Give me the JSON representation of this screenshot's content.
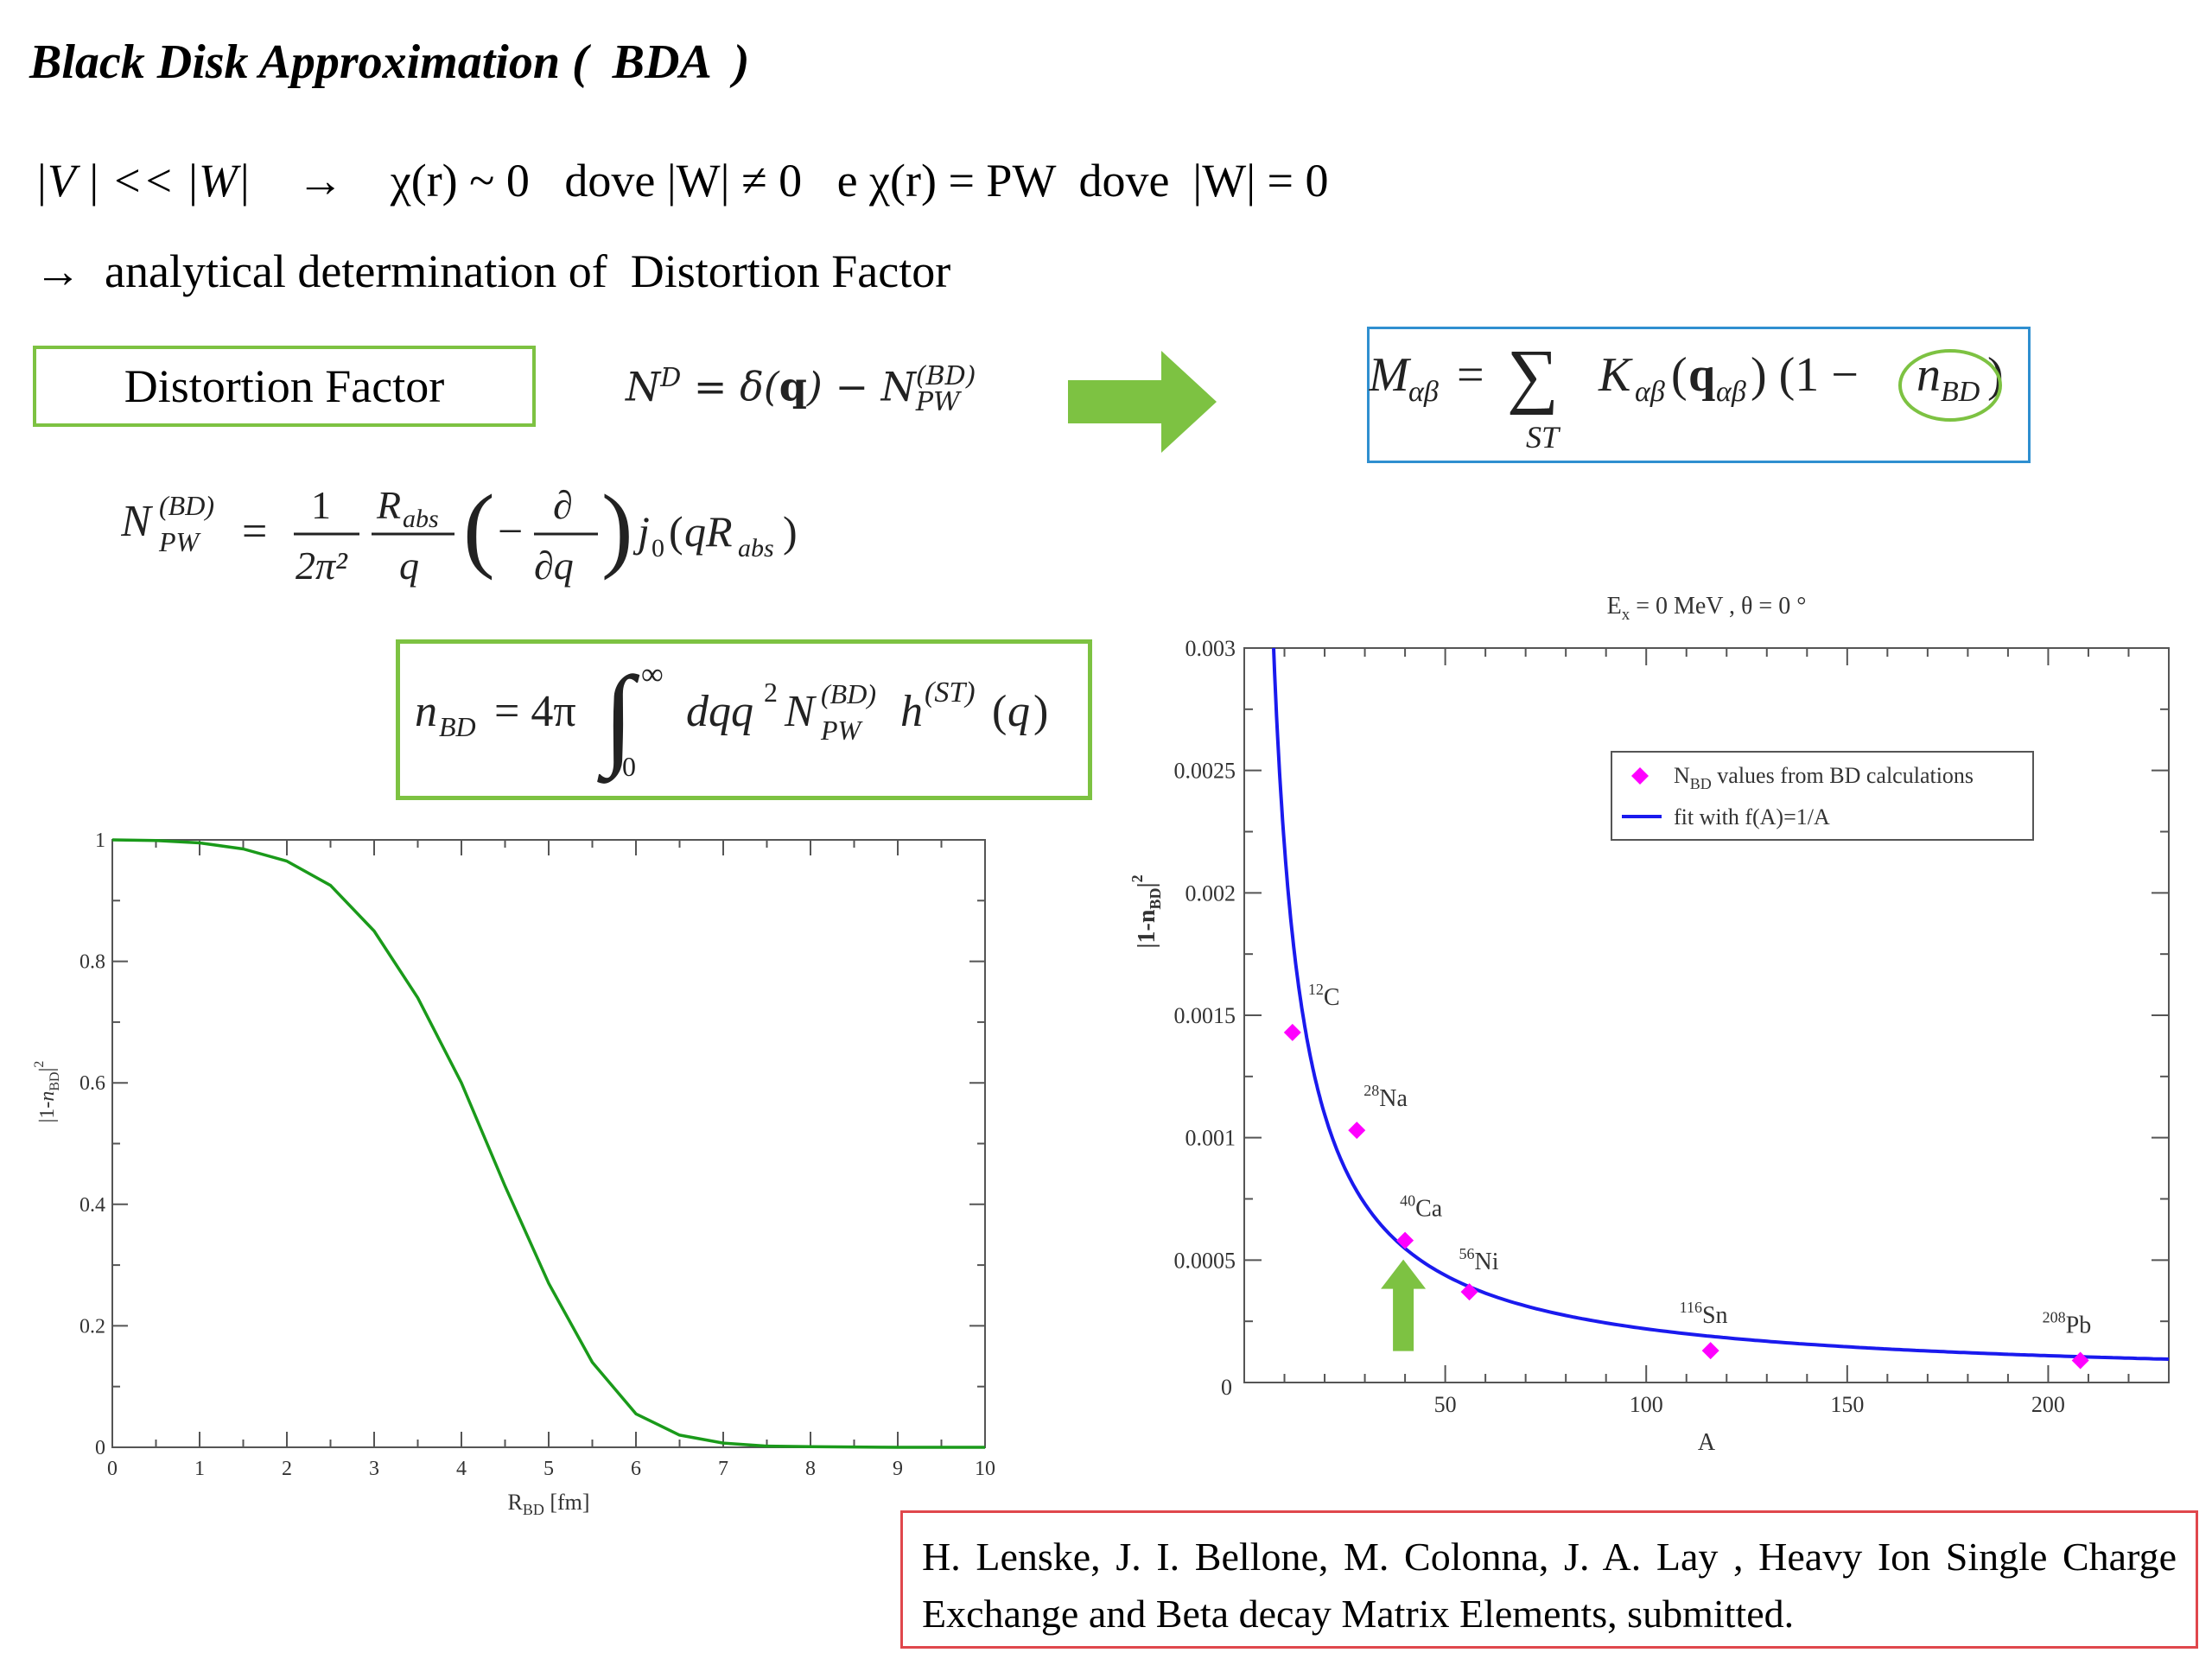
{
  "slide": {
    "title": "Black Disk Approximation (  BDA  )",
    "line1": {
      "v": "|V | << |W|",
      "arrow": "→",
      "chi_zero": "χ(r) ~ 0",
      "dove1": "dove |W| ≠ 0",
      "e_chi_pw": "e χ(r) = PW",
      "dove2": "dove  |W| = 0"
    },
    "line2": {
      "arrow": "→",
      "text": "analytical determination of  Distortion Factor"
    },
    "distortion_box_label": "Distortion Factor",
    "equations": {
      "nd": "N^D = δ(q) − N_PW^(BD)",
      "m": "M_αβ = Σ_ST K_αβ(q_αβ) (1 − n_BD)",
      "npw": "N_PW^(BD) = (1/2π²)(R_abs/q)(−∂/∂q) j₀(qR_abs)",
      "nbd": "n_BD = 4π ∫₀^∞ dq q² N_PW^(BD) h^(ST)(q)"
    },
    "arrow_color": "#7dc242",
    "reference": "H. Lenske, J. I. Bellone, M. Colonna, J. A. Lay ,  Heavy Ion Single Charge Exchange and Beta decay Matrix Elements, submitted."
  },
  "chart_data": [
    {
      "type": "line",
      "title": "",
      "xlabel": "R_BD [fm]",
      "ylabel": "|1-n_BD|^2",
      "xlim": [
        0,
        10
      ],
      "ylim": [
        0,
        1
      ],
      "x_ticks": [
        0,
        1,
        2,
        3,
        4,
        5,
        6,
        7,
        8,
        9,
        10
      ],
      "y_ticks": [
        0,
        0.2,
        0.4,
        0.6,
        0.8,
        1
      ],
      "series": [
        {
          "color": "#1a9a1a",
          "x": [
            0,
            0.5,
            1,
            1.5,
            2,
            2.5,
            3,
            3.5,
            4,
            4.5,
            5,
            5.5,
            6,
            6.5,
            7,
            7.5,
            8,
            9,
            10
          ],
          "y": [
            1,
            0.999,
            0.995,
            0.985,
            0.965,
            0.925,
            0.85,
            0.74,
            0.6,
            0.43,
            0.27,
            0.14,
            0.055,
            0.02,
            0.007,
            0.002,
            0.001,
            0,
            0
          ]
        }
      ]
    },
    {
      "type": "scatter",
      "title": "E_x = 0 MeV , θ = 0 °",
      "title_parts": {
        "e": "E",
        "x": "x",
        "rest": " = 0 MeV , θ = 0 °"
      },
      "xlabel": "A",
      "ylabel": "|1-n_BD|^2",
      "xlim": [
        0,
        230
      ],
      "ylim": [
        0,
        0.003
      ],
      "x_ticks": [
        50,
        100,
        150,
        200
      ],
      "y_ticks": [
        0,
        0.0005,
        0.001,
        0.0015,
        0.002,
        0.0025,
        0.003
      ],
      "y_tick_labels": [
        "0",
        "0.0005",
        "0.001",
        "0.0015",
        "0.002",
        "0.0025",
        "0.003"
      ],
      "legend_position": "top-right",
      "series": [
        {
          "name": "N_BD values from BD calculations",
          "name_parts": {
            "n": "N",
            "bd": "BD",
            "rest": " values from BD calculations"
          },
          "marker": "diamond",
          "color": "#ff00ff",
          "points": [
            {
              "x": 12,
              "y": 0.00143,
              "label_sup": "12",
              "label": "C"
            },
            {
              "x": 28,
              "y": 0.00103,
              "label_sup": "28",
              "label": "Na"
            },
            {
              "x": 40,
              "y": 0.00058,
              "label_sup": "40",
              "label": "Ca"
            },
            {
              "x": 56,
              "y": 0.00037,
              "label_sup": "56",
              "label": "Ni"
            },
            {
              "x": 116,
              "y": 0.00013,
              "label_sup": "116",
              "label": "Sn"
            },
            {
              "x": 208,
              "y": 9e-05,
              "label_sup": "208",
              "label": "Pb"
            }
          ]
        },
        {
          "name": "fit with f(A)=1/A",
          "type": "line",
          "color": "#1a1aee",
          "formula_coeff": 0.0219
        }
      ],
      "annotation": {
        "type": "arrow",
        "x": 40,
        "y": 0.00058,
        "color": "#7dc242"
      }
    }
  ]
}
